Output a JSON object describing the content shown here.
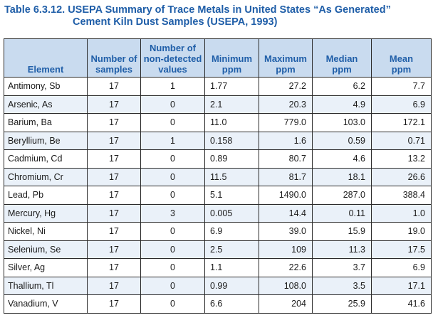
{
  "title": {
    "line1": "Table 6.3.12. USEPA Summary of Trace Metals in United States “As Generated”",
    "line2": "Cement Kiln Dust Samples (USEPA, 1993)"
  },
  "headers": [
    [
      "Element"
    ],
    [
      "Number of",
      "samples"
    ],
    [
      "Number of",
      "non-detected",
      "values"
    ],
    [
      "Minimum",
      "ppm"
    ],
    [
      "Maximum",
      "ppm"
    ],
    [
      "Median",
      "ppm"
    ],
    [
      "Mean",
      "ppm"
    ]
  ],
  "rows": [
    [
      "Antimony, Sb",
      "17",
      "1",
      "1.77",
      "27.2",
      "6.2",
      "7.7"
    ],
    [
      "Arsenic, As",
      "17",
      "0",
      "2.1",
      "20.3",
      "4.9",
      "6.9"
    ],
    [
      "Barium, Ba",
      "17",
      "0",
      "11.0",
      "779.0",
      "103.0",
      "172.1"
    ],
    [
      "Beryllium, Be",
      "17",
      "1",
      "0.158",
      "1.6",
      "0.59",
      "0.71"
    ],
    [
      "Cadmium, Cd",
      "17",
      "0",
      "0.89",
      "80.7",
      "4.6",
      "13.2"
    ],
    [
      "Chromium, Cr",
      "17",
      "0",
      "11.5",
      "81.7",
      "18.1",
      "26.6"
    ],
    [
      "Lead, Pb",
      "17",
      "0",
      "5.1",
      "1490.0",
      "287.0",
      "388.4"
    ],
    [
      "Mercury, Hg",
      "17",
      "3",
      "0.005",
      "14.4",
      "0.11",
      "1.0"
    ],
    [
      "Nickel, Ni",
      "17",
      "0",
      "6.9",
      "39.0",
      "15.9",
      "19.0"
    ],
    [
      "Selenium, Se",
      "17",
      "0",
      "2.5",
      "109",
      "11.3",
      "17.5"
    ],
    [
      "Silver, Ag",
      "17",
      "0",
      "1.1",
      "22.6",
      "3.7",
      "6.9"
    ],
    [
      "Thallium, Tl",
      "17",
      "0",
      "0.99",
      "108.0",
      "3.5",
      "17.1"
    ],
    [
      "Vanadium, V",
      "17",
      "0",
      "6.6",
      "204",
      "25.9",
      "41.6"
    ]
  ]
}
